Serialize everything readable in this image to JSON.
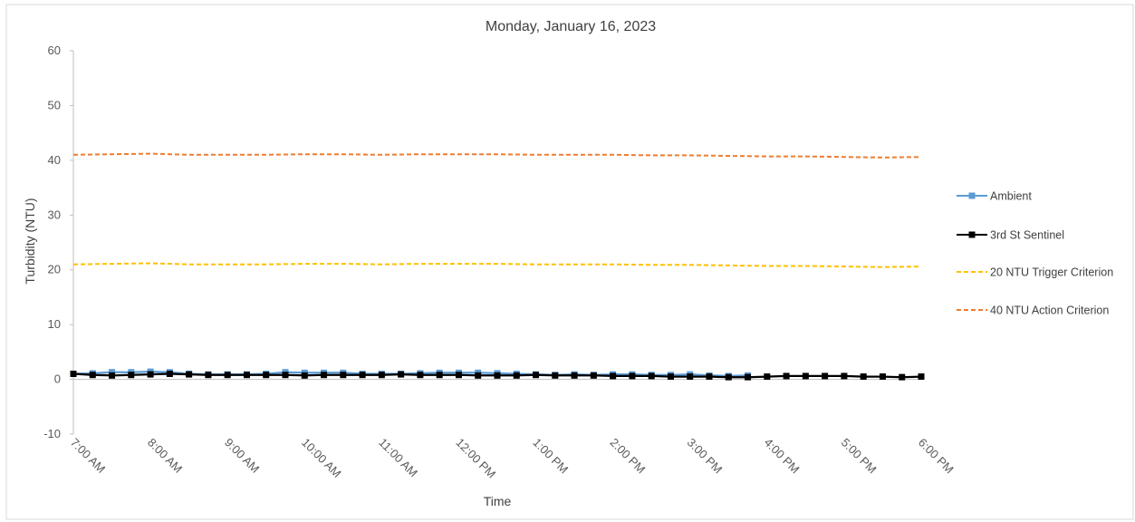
{
  "chart_data": {
    "type": "line",
    "title": "Monday, January 16, 2023",
    "xlabel": "Time",
    "ylabel": "Turbidity (NTU)",
    "ylim": [
      -10,
      60
    ],
    "yticks": [
      -10,
      0,
      10,
      20,
      30,
      40,
      50,
      60
    ],
    "xlim": [
      7,
      18
    ],
    "xticks": [
      {
        "hour": 7,
        "label": "7:00 AM"
      },
      {
        "hour": 8,
        "label": "8:00 AM"
      },
      {
        "hour": 9,
        "label": "9:00 AM"
      },
      {
        "hour": 10,
        "label": "10:00 AM"
      },
      {
        "hour": 11,
        "label": "11:00 AM"
      },
      {
        "hour": 12,
        "label": "12:00 PM"
      },
      {
        "hour": 13,
        "label": "1:00 PM"
      },
      {
        "hour": 14,
        "label": "2:00 PM"
      },
      {
        "hour": 15,
        "label": "3:00 PM"
      },
      {
        "hour": 16,
        "label": "4:00 PM"
      },
      {
        "hour": 17,
        "label": "5:00 PM"
      },
      {
        "hour": 18,
        "label": "6:00 PM"
      }
    ],
    "grid": false,
    "legend": "right",
    "series": [
      {
        "name": "Ambient",
        "color": "#5b9bd5",
        "style": "solid-square-markers",
        "x": [
          "7:00",
          "7:15",
          "7:30",
          "7:45",
          "8:00",
          "8:15",
          "8:30",
          "8:45",
          "9:00",
          "9:15",
          "9:30",
          "9:45",
          "10:00",
          "10:15",
          "10:30",
          "10:45",
          "11:00",
          "11:15",
          "11:30",
          "11:45",
          "12:00",
          "12:15",
          "12:30",
          "12:45",
          "13:00",
          "13:15",
          "13:30",
          "13:45",
          "14:00",
          "14:15",
          "14:30",
          "14:45",
          "15:00",
          "15:15",
          "15:30",
          "15:45"
        ],
        "y": [
          1.0,
          1.1,
          1.3,
          1.3,
          1.4,
          1.3,
          1.0,
          0.9,
          0.9,
          0.9,
          1.0,
          1.3,
          1.2,
          1.2,
          1.2,
          1.0,
          1.0,
          1.0,
          1.1,
          1.2,
          1.2,
          1.2,
          1.1,
          1.0,
          0.9,
          0.8,
          0.9,
          0.8,
          0.9,
          0.9,
          0.8,
          0.8,
          0.9,
          0.7,
          0.6,
          0.7
        ]
      },
      {
        "name": "3rd St Sentinel",
        "color": "#000000",
        "style": "solid-square-markers",
        "x": [
          "7:00",
          "7:15",
          "7:30",
          "7:45",
          "8:00",
          "8:15",
          "8:30",
          "8:45",
          "9:00",
          "9:15",
          "9:30",
          "9:45",
          "10:00",
          "10:15",
          "10:30",
          "10:45",
          "11:00",
          "11:15",
          "11:30",
          "11:45",
          "12:00",
          "12:15",
          "12:30",
          "12:45",
          "13:00",
          "13:15",
          "13:30",
          "13:45",
          "14:00",
          "14:15",
          "14:30",
          "14:45",
          "15:00",
          "15:15",
          "15:30",
          "15:45",
          "16:00",
          "16:15",
          "16:30",
          "16:45",
          "17:00",
          "17:15",
          "17:30",
          "17:45",
          "18:00"
        ],
        "y": [
          1.0,
          0.8,
          0.7,
          0.8,
          0.9,
          1.0,
          0.9,
          0.8,
          0.8,
          0.8,
          0.8,
          0.8,
          0.7,
          0.8,
          0.8,
          0.8,
          0.8,
          0.9,
          0.8,
          0.8,
          0.8,
          0.7,
          0.7,
          0.7,
          0.8,
          0.7,
          0.7,
          0.7,
          0.6,
          0.6,
          0.6,
          0.5,
          0.5,
          0.5,
          0.4,
          0.4,
          0.5,
          0.6,
          0.6,
          0.6,
          0.6,
          0.5,
          0.5,
          0.4,
          0.5
        ]
      },
      {
        "name": "20 NTU Trigger Criterion",
        "color": "#ffc000",
        "style": "dashed",
        "x": [
          "7:00",
          "7:30",
          "8:00",
          "8:30",
          "9:00",
          "9:30",
          "10:00",
          "10:30",
          "11:00",
          "11:30",
          "12:00",
          "12:30",
          "13:00",
          "13:30",
          "14:00",
          "14:30",
          "15:00",
          "15:30",
          "16:00",
          "16:30",
          "17:00",
          "17:30",
          "18:00"
        ],
        "y": [
          21.0,
          21.1,
          21.2,
          21.0,
          21.0,
          21.0,
          21.1,
          21.1,
          21.0,
          21.1,
          21.1,
          21.1,
          21.0,
          21.0,
          21.0,
          20.9,
          20.9,
          20.8,
          20.7,
          20.7,
          20.6,
          20.5,
          20.6
        ]
      },
      {
        "name": "40 NTU Action Criterion",
        "color": "#ed7d31",
        "style": "dashed",
        "x": [
          "7:00",
          "7:30",
          "8:00",
          "8:30",
          "9:00",
          "9:30",
          "10:00",
          "10:30",
          "11:00",
          "11:30",
          "12:00",
          "12:30",
          "13:00",
          "13:30",
          "14:00",
          "14:30",
          "15:00",
          "15:30",
          "16:00",
          "16:30",
          "17:00",
          "17:30",
          "18:00"
        ],
        "y": [
          41.0,
          41.1,
          41.2,
          41.0,
          41.0,
          41.0,
          41.1,
          41.1,
          41.0,
          41.1,
          41.1,
          41.1,
          41.0,
          41.0,
          41.0,
          40.9,
          40.9,
          40.8,
          40.7,
          40.7,
          40.6,
          40.5,
          40.6
        ]
      }
    ]
  }
}
